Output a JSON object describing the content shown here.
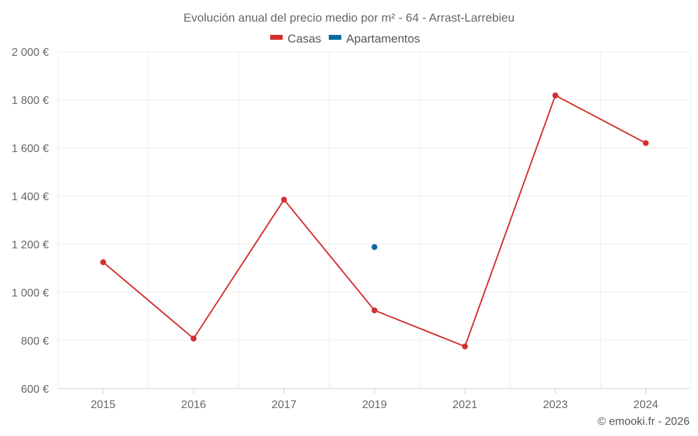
{
  "chart_data": {
    "type": "line",
    "title": "Evolución anual del precio medio por m² - 64 - Arrast-Larrebieu",
    "categories": [
      "2015",
      "2016",
      "2017",
      "2019",
      "2021",
      "2023",
      "2024"
    ],
    "series": [
      {
        "name": "Casas",
        "color": "#d32f2f",
        "values": [
          1125,
          808,
          1385,
          925,
          775,
          1818,
          1620
        ]
      },
      {
        "name": "Apartamentos",
        "color": "#0b6aa2",
        "values": [
          null,
          null,
          null,
          1188,
          null,
          null,
          null
        ]
      }
    ],
    "ylim": [
      600,
      2000
    ],
    "y_ticks": [
      2000,
      1800,
      1600,
      1400,
      1200,
      1000,
      800,
      600
    ],
    "y_tick_labels": [
      "2 000 €",
      "1 800 €",
      "1 600 €",
      "1 400 €",
      "1 200 €",
      "1 000 €",
      "800 €",
      "600 €"
    ],
    "grid": true,
    "legend_position": "top-center",
    "xlabel": "",
    "ylabel": ""
  },
  "credit": "© emooki.fr - 2026"
}
